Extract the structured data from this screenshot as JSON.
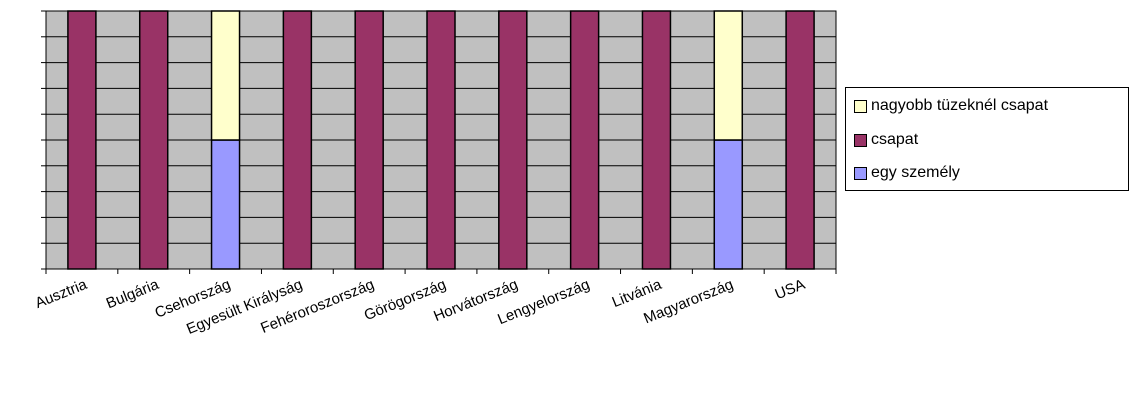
{
  "chart_data": {
    "type": "bar",
    "stacked": true,
    "categories": [
      "Ausztria",
      "Bulgária",
      "Csehország",
      "Egyesült Királyság",
      "Fehéroroszország",
      "Görögország",
      "Horvátország",
      "Lengyelország",
      "Litvánia",
      "Magyarország",
      "USA"
    ],
    "series": [
      {
        "name": "egy személy",
        "values": [
          0,
          0,
          1,
          0,
          0,
          0,
          0,
          0,
          0,
          1,
          0
        ]
      },
      {
        "name": "csapat",
        "values": [
          2,
          2,
          0,
          2,
          2,
          2,
          2,
          2,
          2,
          0,
          2
        ]
      },
      {
        "name": "nagyobb tüzeknél csapat",
        "values": [
          0,
          0,
          1,
          0,
          0,
          0,
          0,
          0,
          0,
          1,
          0
        ]
      }
    ],
    "ylim": [
      0,
      2
    ],
    "y_gridlines": 10,
    "grid": true,
    "legend_position": "right",
    "colors": {
      "plot_background": "#c0c0c0",
      "egy személy": "#9999ff",
      "csapat": "#993366",
      "nagyobb tüzeknél csapat": "#ffffcc"
    }
  }
}
